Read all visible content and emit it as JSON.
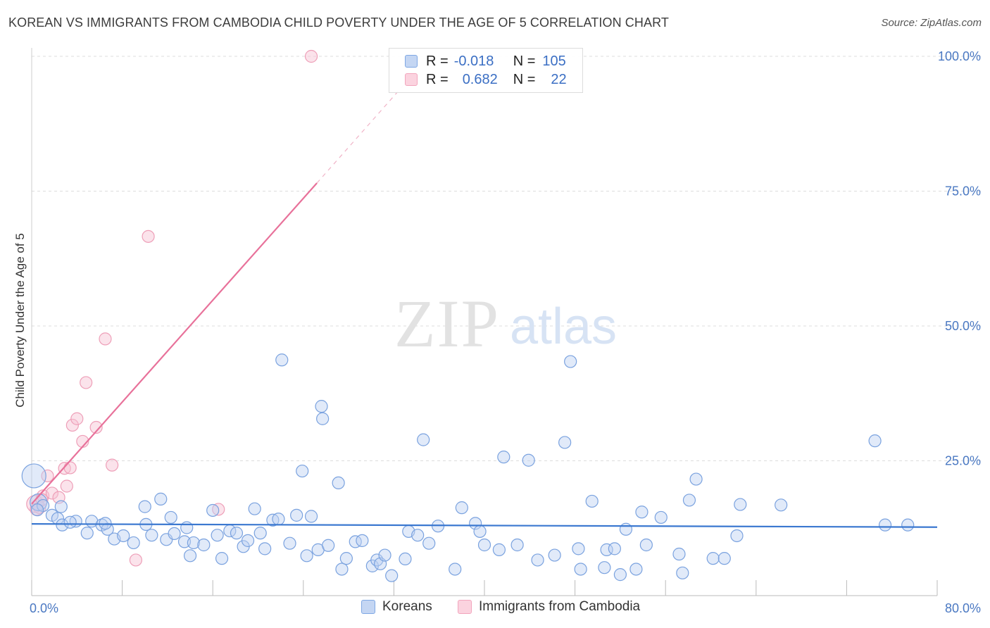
{
  "title": "KOREAN VS IMMIGRANTS FROM CAMBODIA CHILD POVERTY UNDER THE AGE OF 5 CORRELATION CHART",
  "source": "Source: ZipAtlas.com",
  "watermark": {
    "zip": "ZIP",
    "atlas": "atlas"
  },
  "legend": {
    "rows": [
      {
        "r_label": "R =",
        "r_value": "-0.018",
        "n_label": "N =",
        "n_value": "105",
        "color": "#a9c4ee"
      },
      {
        "r_label": "R =",
        "r_value": "0.682",
        "n_label": "N =",
        "n_value": "22",
        "color": "#f7b8cb"
      }
    ]
  },
  "chart_data": {
    "type": "scatter",
    "title": "KOREAN VS IMMIGRANTS FROM CAMBODIA CHILD POVERTY UNDER THE AGE OF 5 CORRELATION CHART",
    "xlabel": "",
    "ylabel": "Child Poverty Under the Age of 5",
    "xlim": [
      0,
      80
    ],
    "ylim": [
      0,
      100
    ],
    "x_tick_labels": [
      "0.0%",
      "80.0%"
    ],
    "y_ticks": [
      25,
      50,
      75,
      100
    ],
    "y_tick_labels": [
      "25.0%",
      "50.0%",
      "75.0%",
      "100.0%"
    ],
    "grid": true,
    "legend_position": "top-center",
    "series": [
      {
        "name": "Koreans",
        "color": "#7fa8e4",
        "trend": {
          "x": [
            0,
            80
          ],
          "y": [
            13.3,
            12.7
          ],
          "color": "#3b78d0"
        },
        "points": [
          [
            0.2,
            22.2,
            3
          ],
          [
            0.6,
            17.3,
            2
          ],
          [
            1.0,
            16.7,
            1
          ],
          [
            0.5,
            15.9,
            1
          ],
          [
            1.8,
            14.9,
            1
          ],
          [
            2.3,
            14.3,
            1
          ],
          [
            2.7,
            13.1,
            1
          ],
          [
            3.9,
            13.8,
            1
          ],
          [
            4.9,
            11.6,
            1
          ],
          [
            5.3,
            13.8,
            1
          ],
          [
            6.2,
            13.1,
            1
          ],
          [
            6.7,
            12.3,
            1
          ],
          [
            7.3,
            10.5,
            1
          ],
          [
            8.1,
            11.1,
            1
          ],
          [
            9.0,
            9.8,
            1
          ],
          [
            2.6,
            16.5,
            1
          ],
          [
            10.0,
            16.5,
            1
          ],
          [
            10.1,
            13.2,
            1
          ],
          [
            10.6,
            11.2,
            1
          ],
          [
            11.4,
            17.9,
            1
          ],
          [
            11.9,
            10.4,
            1
          ],
          [
            12.3,
            14.5,
            1
          ],
          [
            12.6,
            11.5,
            1
          ],
          [
            13.5,
            10.0,
            1
          ],
          [
            14.0,
            7.4,
            1
          ],
          [
            14.3,
            9.8,
            1
          ],
          [
            15.2,
            9.4,
            1
          ],
          [
            16.0,
            15.8,
            1
          ],
          [
            16.4,
            11.2,
            1
          ],
          [
            16.8,
            6.9,
            1
          ],
          [
            17.5,
            12.0,
            1
          ],
          [
            18.1,
            11.6,
            1
          ],
          [
            18.7,
            9.1,
            1
          ],
          [
            19.1,
            10.2,
            1
          ],
          [
            19.7,
            16.1,
            1
          ],
          [
            20.2,
            11.6,
            1
          ],
          [
            20.6,
            8.7,
            1
          ],
          [
            21.3,
            14.0,
            1
          ],
          [
            21.8,
            14.2,
            1
          ],
          [
            22.1,
            43.7,
            1
          ],
          [
            22.8,
            9.7,
            1
          ],
          [
            23.4,
            14.9,
            1
          ],
          [
            23.9,
            23.1,
            1
          ],
          [
            24.3,
            7.4,
            1
          ],
          [
            24.7,
            14.7,
            1
          ],
          [
            25.3,
            8.5,
            1
          ],
          [
            25.7,
            32.8,
            1
          ],
          [
            26.2,
            9.3,
            1
          ],
          [
            27.1,
            20.9,
            1
          ],
          [
            27.4,
            4.9,
            1
          ],
          [
            27.8,
            6.9,
            1
          ],
          [
            28.6,
            10.0,
            1
          ],
          [
            29.2,
            10.2,
            1
          ],
          [
            30.1,
            5.5,
            1
          ],
          [
            30.5,
            6.6,
            1
          ],
          [
            30.8,
            5.9,
            1
          ],
          [
            31.2,
            7.5,
            1
          ],
          [
            31.8,
            3.7,
            1
          ],
          [
            33.0,
            6.8,
            1
          ],
          [
            33.3,
            11.9,
            1
          ],
          [
            34.1,
            11.2,
            1
          ],
          [
            34.6,
            28.9,
            1
          ],
          [
            35.1,
            9.7,
            1
          ],
          [
            35.9,
            12.9,
            1
          ],
          [
            37.4,
            4.9,
            1
          ],
          [
            38.0,
            16.3,
            1
          ],
          [
            39.2,
            13.4,
            1
          ],
          [
            39.6,
            11.9,
            1
          ],
          [
            40.0,
            9.4,
            1
          ],
          [
            41.3,
            8.5,
            1
          ],
          [
            41.7,
            25.7,
            1
          ],
          [
            42.9,
            9.4,
            1
          ],
          [
            43.9,
            25.1,
            1
          ],
          [
            44.7,
            6.6,
            1
          ],
          [
            46.2,
            7.5,
            1
          ],
          [
            47.1,
            28.4,
            1
          ],
          [
            47.6,
            43.4,
            1
          ],
          [
            48.3,
            8.7,
            1
          ],
          [
            48.5,
            4.9,
            1
          ],
          [
            49.5,
            17.5,
            1
          ],
          [
            50.6,
            5.2,
            1
          ],
          [
            50.8,
            8.5,
            1
          ],
          [
            51.5,
            8.7,
            1
          ],
          [
            52.0,
            3.9,
            1
          ],
          [
            52.5,
            12.3,
            1
          ],
          [
            53.4,
            4.9,
            1
          ],
          [
            54.3,
            9.4,
            1
          ],
          [
            53.9,
            15.5,
            1
          ],
          [
            55.6,
            14.5,
            1
          ],
          [
            57.2,
            7.7,
            1
          ],
          [
            58.1,
            17.7,
            1
          ],
          [
            57.5,
            4.2,
            1
          ],
          [
            58.7,
            21.6,
            1
          ],
          [
            60.2,
            6.9,
            1
          ],
          [
            61.2,
            6.9,
            1
          ],
          [
            62.3,
            11.1,
            1
          ],
          [
            62.6,
            16.9,
            1
          ],
          [
            66.2,
            16.8,
            1
          ],
          [
            25.6,
            35.1,
            1
          ],
          [
            74.5,
            28.7,
            1
          ],
          [
            75.4,
            13.1,
            1
          ],
          [
            77.4,
            13.1,
            1
          ],
          [
            3.4,
            13.6,
            1
          ],
          [
            13.7,
            12.6,
            1
          ],
          [
            6.5,
            13.4,
            1
          ]
        ]
      },
      {
        "name": "Immigrants from Cambodia",
        "color": "#f2a5bd",
        "trend": {
          "x": [
            0,
            25.2
          ],
          "y": [
            17.0,
            76.5
          ],
          "ext_x": [
            25.2,
            33.0
          ],
          "ext_y": [
            76.5,
            95.0
          ],
          "color": "#e8719a"
        },
        "points": [
          [
            0.3,
            17.0,
            2
          ],
          [
            0.7,
            16.3,
            1
          ],
          [
            1.0,
            18.5,
            1
          ],
          [
            1.4,
            22.2,
            1
          ],
          [
            1.8,
            19.0,
            1
          ],
          [
            2.4,
            18.2,
            1
          ],
          [
            2.9,
            23.6,
            1
          ],
          [
            3.1,
            20.3,
            1
          ],
          [
            3.6,
            31.6,
            1
          ],
          [
            3.4,
            23.7,
            1
          ],
          [
            4.0,
            32.8,
            1
          ],
          [
            4.5,
            28.6,
            1
          ],
          [
            4.8,
            39.5,
            1
          ],
          [
            5.7,
            31.2,
            1
          ],
          [
            6.5,
            47.6,
            1
          ],
          [
            7.1,
            24.2,
            1
          ],
          [
            9.2,
            6.6,
            1
          ],
          [
            10.3,
            66.6,
            1
          ],
          [
            16.5,
            16.0,
            1
          ],
          [
            24.7,
            100.0,
            1
          ],
          [
            0.4,
            16.0,
            1
          ],
          [
            0.9,
            17.8,
            1
          ]
        ]
      }
    ]
  },
  "bottom_legend": [
    {
      "label": "Koreans",
      "color": "#a9c4ee"
    },
    {
      "label": "Immigrants from Cambodia",
      "color": "#f7b8cb"
    }
  ]
}
